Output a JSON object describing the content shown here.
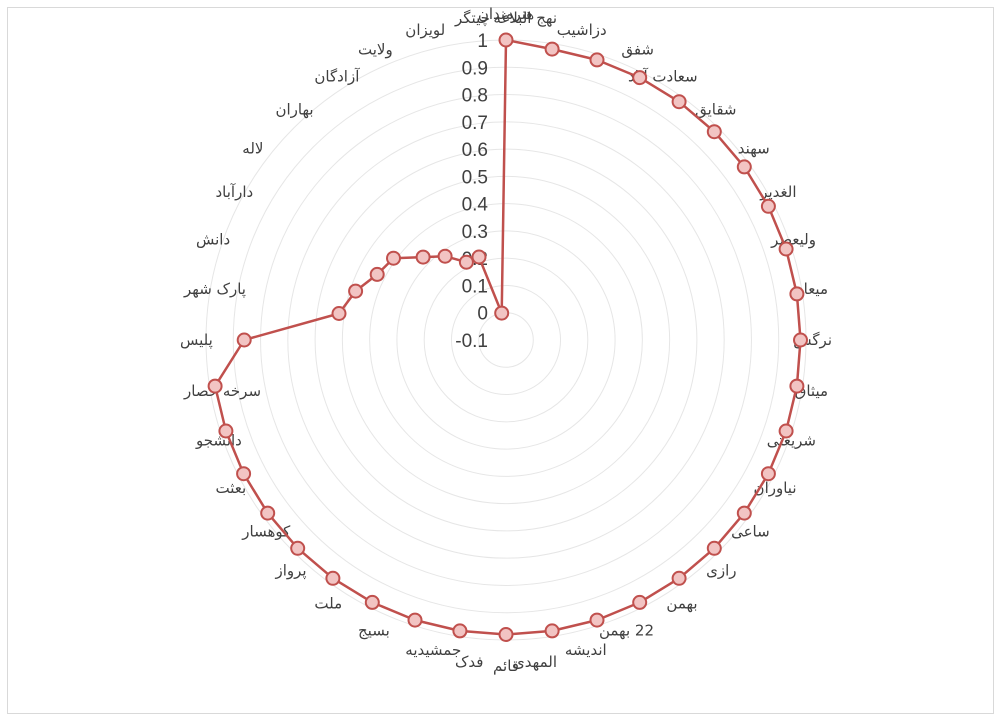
{
  "chart_data": {
    "type": "radar",
    "title": "",
    "categories": [
      "هنرمندان",
      "نهج البلاغه",
      "دزاشیب",
      "شفق",
      "سعادت آباد",
      "شقایق",
      "سهند",
      "الغدیر",
      "ولیعصر",
      "میعاد",
      "نرگس",
      "میثاق",
      "شریعتی",
      "نیاوران",
      "ساعی",
      "رازی",
      "بهمن",
      "22 بهمن",
      "اندیشه",
      "المهدی",
      "قائم",
      "فدک",
      "جمشیدیه",
      "بسیج",
      "ملت",
      "پرواز",
      "کوهسار",
      "بعثت",
      "دانشجو",
      "سرخه حصار",
      "پلیس",
      "پارک شهر",
      "دانش",
      "دارآباد",
      "لاله",
      "بهاران",
      "آزادگان",
      "ولایت",
      "لویزان",
      "چیتگر"
    ],
    "series": [
      {
        "values": [
          1.0,
          0.98,
          0.98,
          0.98,
          0.98,
          0.98,
          0.98,
          0.98,
          0.98,
          0.98,
          0.98,
          0.98,
          0.98,
          0.98,
          0.98,
          0.98,
          0.98,
          0.98,
          0.98,
          0.98,
          0.98,
          0.98,
          0.98,
          0.98,
          0.98,
          0.98,
          0.98,
          0.98,
          0.98,
          0.98,
          0.86,
          0.52,
          0.48,
          0.43,
          0.41,
          0.33,
          0.28,
          0.22,
          0.22,
          0.0
        ]
      }
    ],
    "rmin": -0.1,
    "rmax": 1,
    "ticks": [
      "-0.1",
      "0",
      "0.1",
      "0.2",
      "0.3",
      "0.4",
      "0.5",
      "0.6",
      "0.7",
      "0.8",
      "0.9",
      "1"
    ],
    "tick_values": [
      -0.1,
      0,
      0.1,
      0.2,
      0.3,
      0.4,
      0.5,
      0.6,
      0.7,
      0.8,
      0.9,
      1
    ],
    "grid": true,
    "legend": "none",
    "line_color": "#c0504d",
    "marker_fill": "#f2c4c3",
    "grid_color": "#e6e6e6"
  }
}
